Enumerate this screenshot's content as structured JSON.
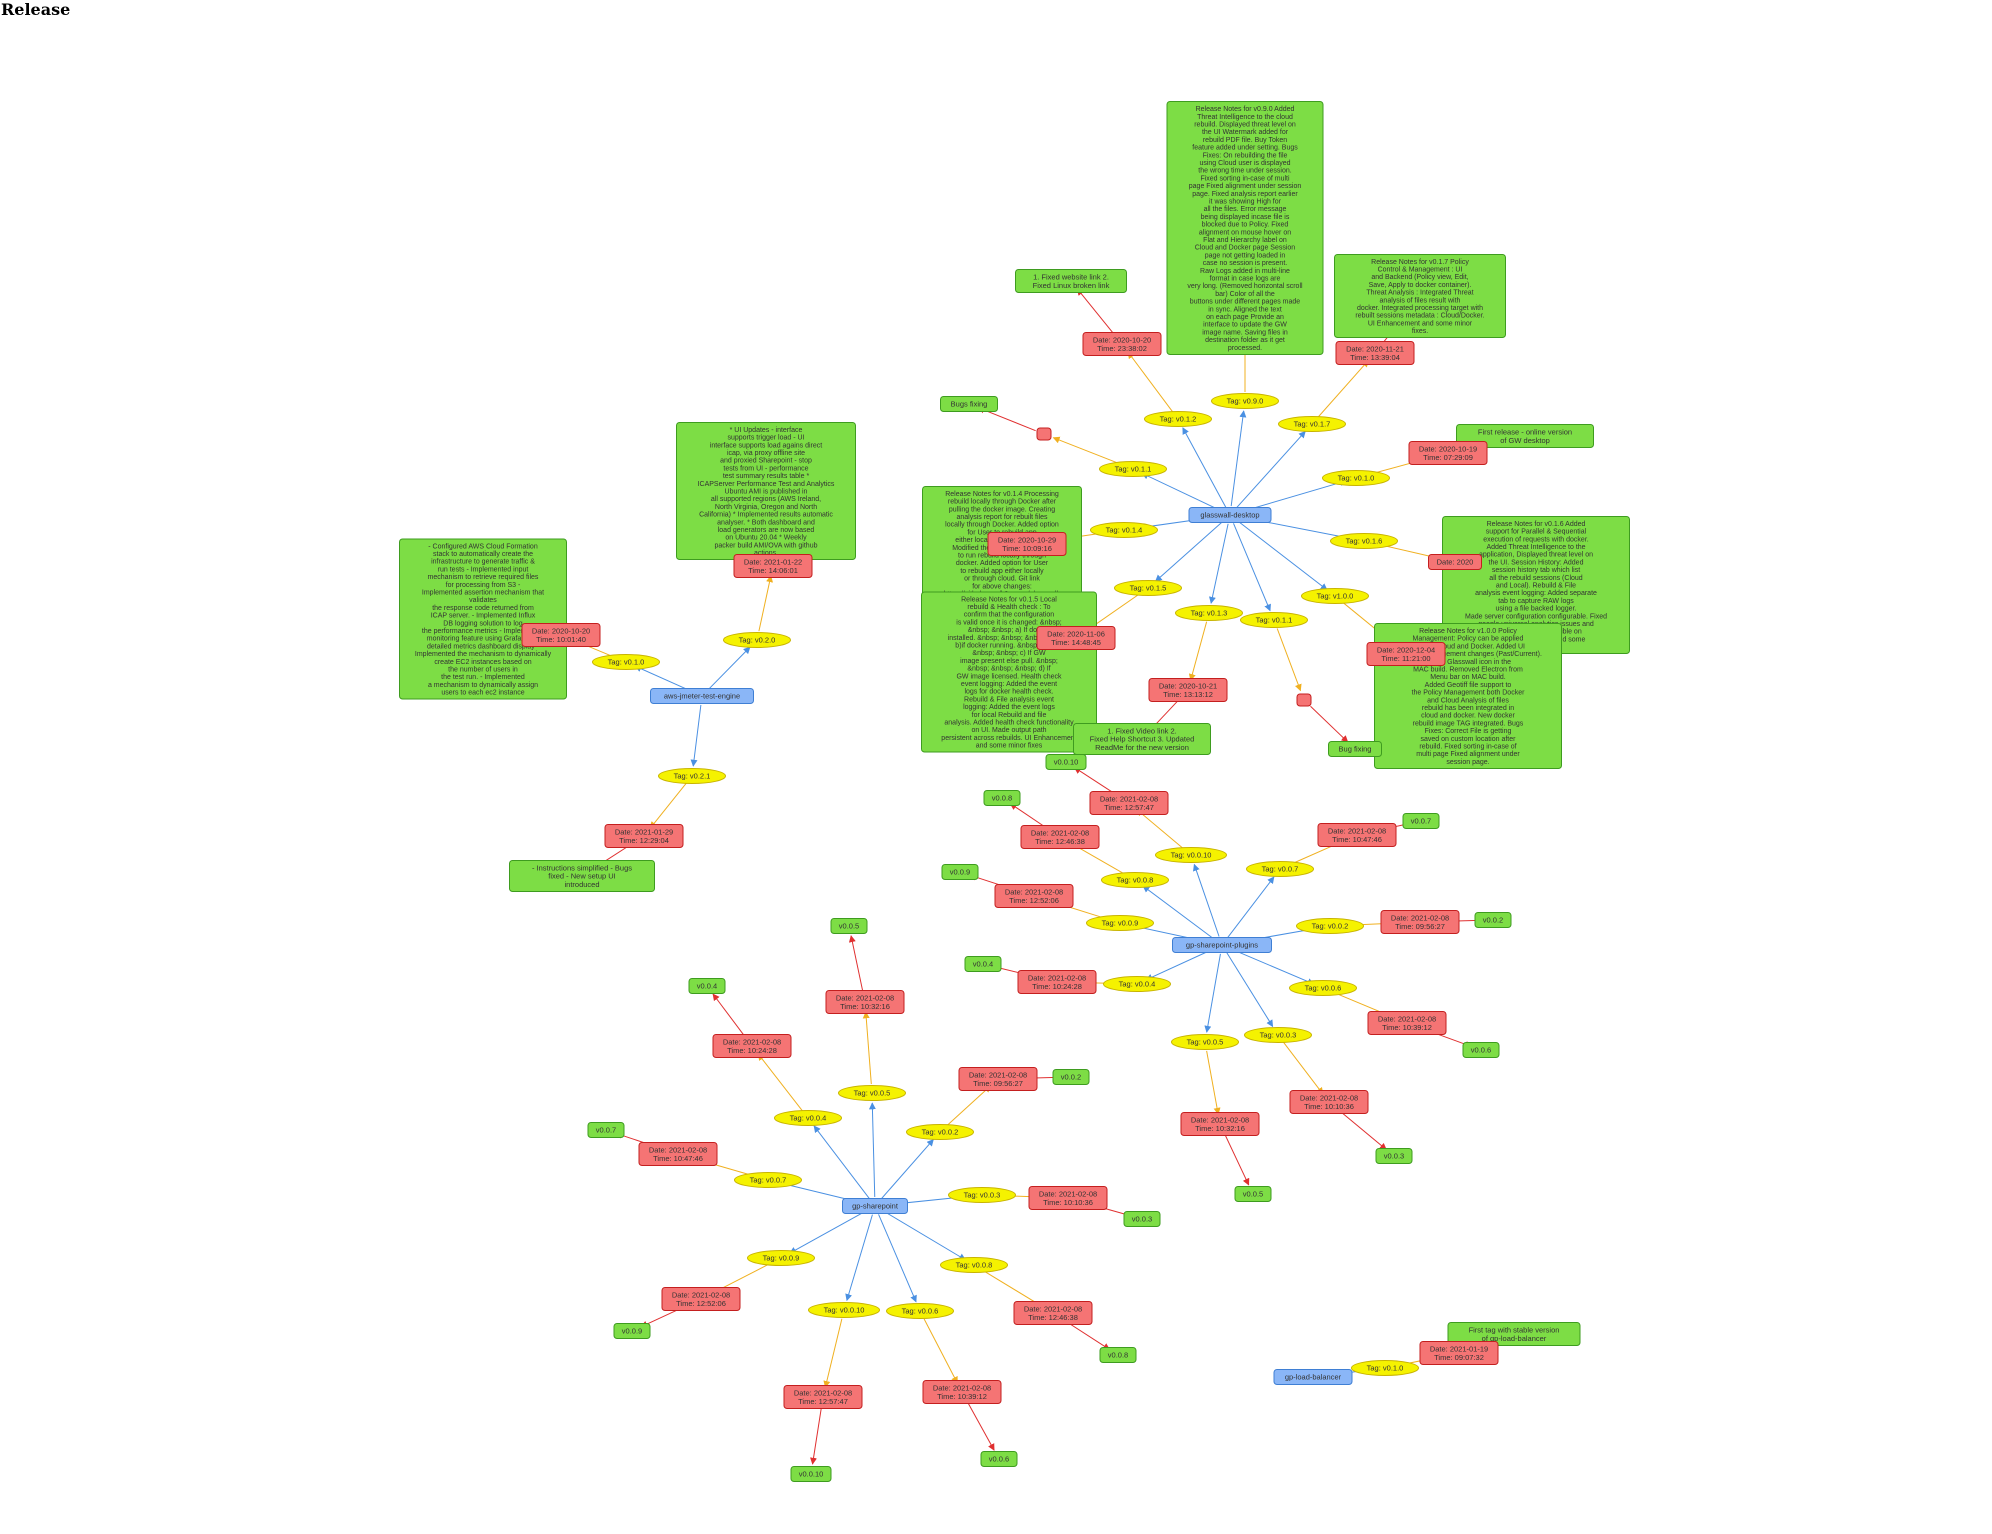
{
  "page": {
    "title": "Release"
  },
  "colors": {
    "repo_fill": "#8ab6f7",
    "repo_stroke": "#3f7fd4",
    "tag_fill": "#f5f200",
    "tag_stroke": "#c8b400",
    "date_fill": "#f57474",
    "date_stroke": "#c41f1f",
    "note_fill": "#7ddd45",
    "note_stroke": "#3e9c1f",
    "edge_repo": "#4a90e2",
    "edge_tag": "#f0b020",
    "edge_date": "#e03030"
  },
  "repos": [
    {
      "name": "glasswall-desktop",
      "branches": [
        {
          "tag": "Tag: v0.1.2",
          "date": "Date: 2020-10-20\nTime: 23:38:02",
          "note": "1. Fixed website link 2.\nFixed Linux broken link"
        },
        {
          "tag": "Tag: v0.9.0",
          "date": "",
          "note": "Release Notes for v0.9.0 Added\nThreat Intelligence to the cloud\nrebuild. Displayed threat level on\nthe UI Watermark added for\nrebuild PDF file. Buy Token\nfeature added under setting. Bugs\nFixes: On rebuilding the file\nusing Cloud user is displayed\nthe wrong time under session.\nFixed sorting in-case of multi\npage Fixed alignment under session\npage. Fixed analysis report earlier\nit was showing High for\nall the files. Error message\nbeing displayed incase file is\nblocked due to Policy. Fixed\nalignment on mouse hover on\nFlat and Hierarchy label on\nCloud and Docker page Session\npage not getting loaded in\ncase no session is present.\nRaw Logs added in multi-line\nformat in case logs are\nvery long. (Removed horizontal scroll\nbar) Color of all the\nbuttons under different pages made\nin sync. Aligned the text\non each page Provide an\ninterface to update the GW\nimage name. Saving files in\ndestination folder as it get\nprocessed."
        },
        {
          "tag": "Tag: v0.1.7",
          "date": "Date: 2020-11-21\nTime: 13:39:04",
          "note": "Release Notes for v0.1.7 Policy\nControl & Management : UI\nand Backend (Policy view, Edit,\nSave, Apply to docker container).\nThreat Analysis : Integrated Threat\nanalysis of files result with\ndocker. Integrated processing target with\nrebuilt sessions metadata : Cloud/Docker.\nUI Enhancement and some minor\nfixes."
        },
        {
          "tag": "Tag: v0.1.1",
          "date": "",
          "note": "Bugs fixing"
        },
        {
          "tag": "Tag: v0.1.0",
          "date": "Date: 2020-10-19\nTime: 07:29:09",
          "note": "First release - online version\nof GW desktop"
        },
        {
          "tag": "Tag: v0.1.4",
          "date": "Date: 2020-10-29\nTime: 10:09:16",
          "note": "Release Notes for v0.1.4 Processing\nrebuild locally through Docker after\npulling the docker image. Creating\nanalysis report for rebuilt files\nlocally through Docker. Added option\nfor User to rebuild app\neither locally or through cloud.\nModified the ReadMe with steps\nto run rebuild locally through\ndocker. Added option for User\nto rebuild app either locally\nor through cloud. Git link\nfor above changes:\nhttps://github.com/k8-proxy/glasswall-\ndesktop/pull/95 Creating\nanalysis report for rebuilt files\nlocally through Docker."
        },
        {
          "tag": "Tag: v0.1.6",
          "date": "Date: 2020",
          "note": "Release Notes for v0.1.6 Added\nsupport for Parallel & Sequential\nexecution of requests with docker.\nAdded Threat Intelligence to the\napplication, Displayed threat level on\nthe UI. Session History: Added\nsession history tab which list\nall the rebuild sessions (Cloud\nand Local). Rebuild & File\nanalysis event logging: Added separate\ntab to capture RAW logs\nusing a file backed logger.\nMade server configuration configurable. Fixed\ngoogle universal analytics issues and\ndownloads are now visible on\nGA. UI Enhancement and some\nminor fixes."
        },
        {
          "tag": "Tag: v0.1.5",
          "date": "Date: 2020-11-06\nTime: 14:48:45",
          "note": "Release Notes for v0.1.5 Local\nrebuild & Health check : To\nconfirm that the configuration\nis valid once it is changed: &nbsp;\n&nbsp; &nbsp; a) If docker\ninstalled. &nbsp; &nbsp; &nbsp; &nbsp;\nb)if docker running. &nbsp; &nbsp;\n&nbsp; &nbsp; c) If GW\nimage present else pull. &nbsp;\n&nbsp; &nbsp; &nbsp; d) If\nGW image licensed. Health check\nevent logging: Added the event\nlogs for docker health check.\nRebuild & File analysis event\nlogging: Added the event logs\nfor local Rebuild and file\nanalysis. Added health check functionality\non UI. Made output path\npersistent across rebuilds. UI Enhancement\nand some minor fixes"
        },
        {
          "tag": "Tag: v0.1.3",
          "date": "Date: 2020-10-21\nTime: 13:13:12",
          "note": "1. Fixed Video link 2.\nFixed Help Shortcut 3. Updated\nReadMe for the new version"
        },
        {
          "tag": "Tag: v1.0.0",
          "date": "Date: 2020-12-04\nTime: 11:21:00",
          "note": "Release Notes for v1.0.0 Policy\nManagement: Policy can be applied\nthrough Cloud and Docker. Added UI\nfor Policy Management changes (Past/Current).\nAdded Glasswall icon in the\nMAC build. Removed Electron from\nMenu bar on MAC build.\nAdded Geotiff file support to\nthe Policy Management both Docker\nand Cloud Analysis of files\nrebuild has been integrated in\ncloud and docker. New docker\nrebuild image TAG integrated. Bugs\nFixes: Correct File is getting\nsaved on custom location after\nrebuild. Fixed sorting in-case of\nmulti page Fixed alignment under\nsession page."
        },
        {
          "tag": "Tag: v0.1.1",
          "date": "",
          "note": "Bug fixing"
        }
      ]
    },
    {
      "name": "aws-jmeter-test-engine",
      "branches": [
        {
          "tag": "Tag: v0.1.0",
          "date": "Date: 2020-10-20\nTime: 10:01:40",
          "note": "- Configured AWS Cloud Formation\nstack to automatically create the\ninfrastructure to generate traffic &\nrun tests - Implemented input\nmechanism to retrieve required files\nfor processing from S3 -\nImplemented assertion mechanism that\nvalidates\nthe response code returned from\nICAP server. - Implemented Influx\nDB logging solution to log\nthe performance metrics - Implemented\nmonitoring feature using Grafana for\ndetailed metrics dashboard display -\nImplemented the mechanism to dynamically\ncreate EC2 instances based on\nthe number of users in\nthe test run. - Implemented\na mechanism to dynamically assign\nusers to each ec2 instance"
        },
        {
          "tag": "Tag: v0.2.0",
          "date": "Date: 2021-01-22\nTime: 14:06:01",
          "note": "* UI Updates - interface\nsupports trigger load - UI\ninterface supports load agains direct\nicap, via proxy offline site\nand proxied Sharepoint - stop\ntests from UI - performance\ntest summary results table *\nICAPServer Performance Test and Analytics\nUbuntu AMI is published in\nall supported regions (AWS Ireland,\nNorth Virginia, Oregon and North\nCalifornia) * Implemented results automatic\nanalyser. * Both dashboard and\nload generators are now based\non Ubuntu 20.04 * Weekly\npacker build AMI/OVA with github\nactions."
        },
        {
          "tag": "Tag: v0.2.1",
          "date": "Date: 2021-01-29\nTime: 12:29:04",
          "note": "- Instructions simplified - Bugs\nfixed - New setup UI\nintroduced"
        }
      ]
    },
    {
      "name": "gp-sharepoint-plugins",
      "branches": [
        {
          "tag": "Tag: v0.0.10",
          "date": "Date: 2021-02-08\nTime: 12:57:47",
          "note": "v0.0.10"
        },
        {
          "tag": "Tag: v0.0.8",
          "date": "Date: 2021-02-08\nTime: 12:46:38",
          "note": "v0.0.8"
        },
        {
          "tag": "Tag: v0.0.7",
          "date": "Date: 2021-02-08\nTime: 10:47:46",
          "note": "v0.0.7"
        },
        {
          "tag": "Tag: v0.0.9",
          "date": "Date: 2021-02-08\nTime: 12:52:06",
          "note": "v0.0.9"
        },
        {
          "tag": "Tag: v0.0.2",
          "date": "Date: 2021-02-08\nTime: 09:56:27",
          "note": "v0.0.2"
        },
        {
          "tag": "Tag: v0.0.4",
          "date": "Date: 2021-02-08\nTime: 10:24:28",
          "note": "v0.0.4"
        },
        {
          "tag": "Tag: v0.0.6",
          "date": "Date: 2021-02-08\nTime: 10:39:12",
          "note": "v0.0.6"
        },
        {
          "tag": "Tag: v0.0.3",
          "date": "Date: 2021-02-08\nTime: 10:10:36",
          "note": "v0.0.3"
        },
        {
          "tag": "Tag: v0.0.5",
          "date": "Date: 2021-02-08\nTime: 10:32:16",
          "note": "v0.0.5"
        }
      ]
    },
    {
      "name": "gp-sharepoint",
      "branches": [
        {
          "tag": "Tag: v0.0.5",
          "date": "Date: 2021-02-08\nTime: 10:32:16",
          "note": "v0.0.5"
        },
        {
          "tag": "Tag: v0.0.4",
          "date": "Date: 2021-02-08\nTime: 10:24:28",
          "note": "v0.0.4"
        },
        {
          "tag": "Tag: v0.0.2",
          "date": "Date: 2021-02-08\nTime: 09:56:27",
          "note": "v0.0.2"
        },
        {
          "tag": "Tag: v0.0.7",
          "date": "Date: 2021-02-08\nTime: 10:47:46",
          "note": "v0.0.7"
        },
        {
          "tag": "Tag: v0.0.3",
          "date": "Date: 2021-02-08\nTime: 10:10:36",
          "note": "v0.0.3"
        },
        {
          "tag": "Tag: v0.0.9",
          "date": "Date: 2021-02-08\nTime: 12:52:06",
          "note": "v0.0.9"
        },
        {
          "tag": "Tag: v0.0.8",
          "date": "Date: 2021-02-08\nTime: 12:46:38",
          "note": "v0.0.8"
        },
        {
          "tag": "Tag: v0.0.10",
          "date": "Date: 2021-02-08\nTime: 12:57:47",
          "note": "v0.0.10"
        },
        {
          "tag": "Tag: v0.0.6",
          "date": "Date: 2021-02-08\nTime: 10:39:12",
          "note": "v0.0.6"
        }
      ]
    },
    {
      "name": "gp-load-balancer",
      "branches": [
        {
          "tag": "Tag: v0.1.0",
          "date": "Date: 2021-01-19\nTime: 09:07:32",
          "note": "First tag with stable version\nof gp-load-balancer"
        }
      ]
    }
  ]
}
